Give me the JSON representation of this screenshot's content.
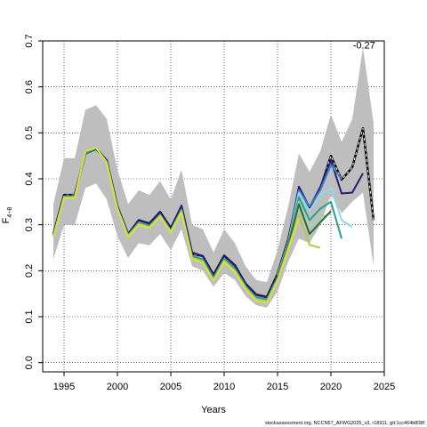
{
  "chart_data": {
    "type": "line",
    "xlabel": "Years",
    "ylabel_main": "F",
    "ylabel_sub": "4−8",
    "xlim": [
      1993,
      2025
    ],
    "ylim": [
      -0.02,
      0.7
    ],
    "x_ticks": [
      1995,
      2000,
      2005,
      2010,
      2015,
      2020,
      2025
    ],
    "y_ticks": [
      0.0,
      0.1,
      0.2,
      0.3,
      0.4,
      0.5,
      0.6,
      0.7
    ],
    "y_tick_labels": [
      "0.0",
      "0.1",
      "0.2",
      "0.3",
      "0.4",
      "0.5",
      "0.6",
      "0.7"
    ],
    "grid": true,
    "annotation": "-0.27",
    "footer": "stockassessment.org, NCCN57_AFWG2025_v3, r18911, git:1cc464b808f",
    "band": {
      "x": [
        1994,
        1995,
        1996,
        1997,
        1998,
        1999,
        2000,
        2001,
        2002,
        2003,
        2004,
        2005,
        2006,
        2007,
        2008,
        2009,
        2010,
        2011,
        2012,
        2013,
        2014,
        2015,
        2016,
        2017,
        2018,
        2019,
        2020,
        2021,
        2022,
        2023,
        2024
      ],
      "upper": [
        0.345,
        0.445,
        0.445,
        0.55,
        0.56,
        0.53,
        0.42,
        0.345,
        0.375,
        0.365,
        0.395,
        0.355,
        0.42,
        0.3,
        0.29,
        0.24,
        0.29,
        0.26,
        0.21,
        0.18,
        0.175,
        0.245,
        0.34,
        0.455,
        0.415,
        0.46,
        0.54,
        0.48,
        0.53,
        0.685,
        0.52
      ],
      "lower": [
        0.225,
        0.3,
        0.3,
        0.38,
        0.39,
        0.355,
        0.275,
        0.228,
        0.26,
        0.255,
        0.28,
        0.245,
        0.29,
        0.21,
        0.2,
        0.165,
        0.195,
        0.18,
        0.145,
        0.125,
        0.12,
        0.155,
        0.22,
        0.27,
        0.26,
        0.3,
        0.365,
        0.325,
        0.35,
        0.37,
        0.21
      ]
    },
    "series": [
      {
        "color": "#000000",
        "dashed": true,
        "width": 2,
        "x": [
          1994,
          1995,
          1996,
          1997,
          1998,
          1999,
          2000,
          2001,
          2002,
          2003,
          2004,
          2005,
          2006,
          2007,
          2008,
          2009,
          2010,
          2011,
          2012,
          2013,
          2014,
          2015,
          2016,
          2017,
          2018,
          2019,
          2020,
          2021,
          2022,
          2023,
          2024
        ],
        "values": [
          0.28,
          0.365,
          0.365,
          0.455,
          0.465,
          0.44,
          0.34,
          0.28,
          0.31,
          0.303,
          0.328,
          0.293,
          0.34,
          0.237,
          0.232,
          0.191,
          0.233,
          0.212,
          0.172,
          0.148,
          0.143,
          0.193,
          0.268,
          0.375,
          0.338,
          0.378,
          0.45,
          0.398,
          0.425,
          0.51,
          0.31
        ]
      },
      {
        "color": "#2b1a7a",
        "dashed": false,
        "width": 2,
        "x": [
          1994,
          1995,
          1996,
          1997,
          1998,
          1999,
          2000,
          2001,
          2002,
          2003,
          2004,
          2005,
          2006,
          2007,
          2008,
          2009,
          2010,
          2011,
          2012,
          2013,
          2014,
          2015,
          2016,
          2017,
          2018,
          2019,
          2020,
          2021,
          2022,
          2023
        ],
        "values": [
          0.278,
          0.363,
          0.363,
          0.455,
          0.467,
          0.44,
          0.34,
          0.28,
          0.31,
          0.302,
          0.327,
          0.292,
          0.342,
          0.24,
          0.232,
          0.19,
          0.232,
          0.211,
          0.171,
          0.147,
          0.142,
          0.19,
          0.265,
          0.383,
          0.338,
          0.382,
          0.44,
          0.368,
          0.37,
          0.412
        ]
      },
      {
        "color": "#3c82c8",
        "dashed": false,
        "width": 2,
        "x": [
          2015,
          2016,
          2017,
          2018,
          2019,
          2020,
          2021
        ],
        "values": [
          0.19,
          0.263,
          0.375,
          0.34,
          0.375,
          0.43,
          0.4
        ]
      },
      {
        "color": "#90d8f0",
        "dashed": false,
        "width": 2,
        "x": [
          2015,
          2016,
          2017,
          2018,
          2019,
          2020,
          2021,
          2022
        ],
        "values": [
          0.19,
          0.262,
          0.37,
          0.33,
          0.365,
          0.38,
          0.31,
          0.295
        ]
      },
      {
        "color": "#2aa08a",
        "dashed": false,
        "width": 2,
        "x": [
          1994,
          1995,
          1996,
          1997,
          1998,
          1999,
          2000,
          2001,
          2002,
          2003,
          2004,
          2005,
          2006,
          2007,
          2008,
          2009,
          2010,
          2011,
          2012,
          2013,
          2014,
          2015,
          2016,
          2017,
          2018,
          2019,
          2020,
          2021
        ],
        "values": [
          0.277,
          0.362,
          0.362,
          0.455,
          0.466,
          0.438,
          0.338,
          0.278,
          0.305,
          0.298,
          0.322,
          0.288,
          0.333,
          0.232,
          0.225,
          0.185,
          0.226,
          0.205,
          0.167,
          0.142,
          0.138,
          0.185,
          0.26,
          0.36,
          0.31,
          0.335,
          0.35,
          0.27
        ]
      },
      {
        "color": "#9ed8b0",
        "dashed": false,
        "width": 2,
        "x": [
          2015,
          2016,
          2017,
          2018,
          2019,
          2020
        ],
        "values": [
          0.185,
          0.255,
          0.35,
          0.295,
          0.315,
          0.325
        ]
      },
      {
        "color": "#2e6b34",
        "dashed": false,
        "width": 2,
        "x": [
          2015,
          2016,
          2017,
          2018,
          2019,
          2020
        ],
        "values": [
          0.185,
          0.255,
          0.345,
          0.28,
          0.305,
          0.33
        ]
      },
      {
        "color": "#b9c84a",
        "dashed": false,
        "width": 2,
        "x": [
          1994,
          1995,
          1996,
          1997,
          1998,
          1999,
          2000,
          2001,
          2002,
          2003,
          2004,
          2005,
          2006,
          2007,
          2008,
          2009,
          2010,
          2011,
          2012,
          2013,
          2014,
          2015,
          2016,
          2017,
          2018,
          2019
        ],
        "values": [
          0.275,
          0.36,
          0.36,
          0.46,
          0.468,
          0.435,
          0.335,
          0.275,
          0.302,
          0.295,
          0.32,
          0.285,
          0.33,
          0.228,
          0.22,
          0.18,
          0.222,
          0.2,
          0.163,
          0.138,
          0.133,
          0.18,
          0.25,
          0.32,
          0.256,
          0.25
        ]
      },
      {
        "color": "#d8e040",
        "dashed": false,
        "width": 2,
        "x": [
          1994,
          1995,
          1996,
          1997,
          1998,
          1999,
          2000,
          2001,
          2002,
          2003,
          2004,
          2005,
          2006,
          2007,
          2008,
          2009,
          2010,
          2011,
          2012,
          2013,
          2014,
          2015,
          2016,
          2017
        ],
        "values": [
          0.274,
          0.358,
          0.358,
          0.46,
          0.468,
          0.434,
          0.333,
          0.273,
          0.3,
          0.293,
          0.318,
          0.283,
          0.327,
          0.225,
          0.217,
          0.178,
          0.219,
          0.197,
          0.16,
          0.135,
          0.13,
          0.178,
          0.245,
          0.315
        ]
      }
    ]
  }
}
